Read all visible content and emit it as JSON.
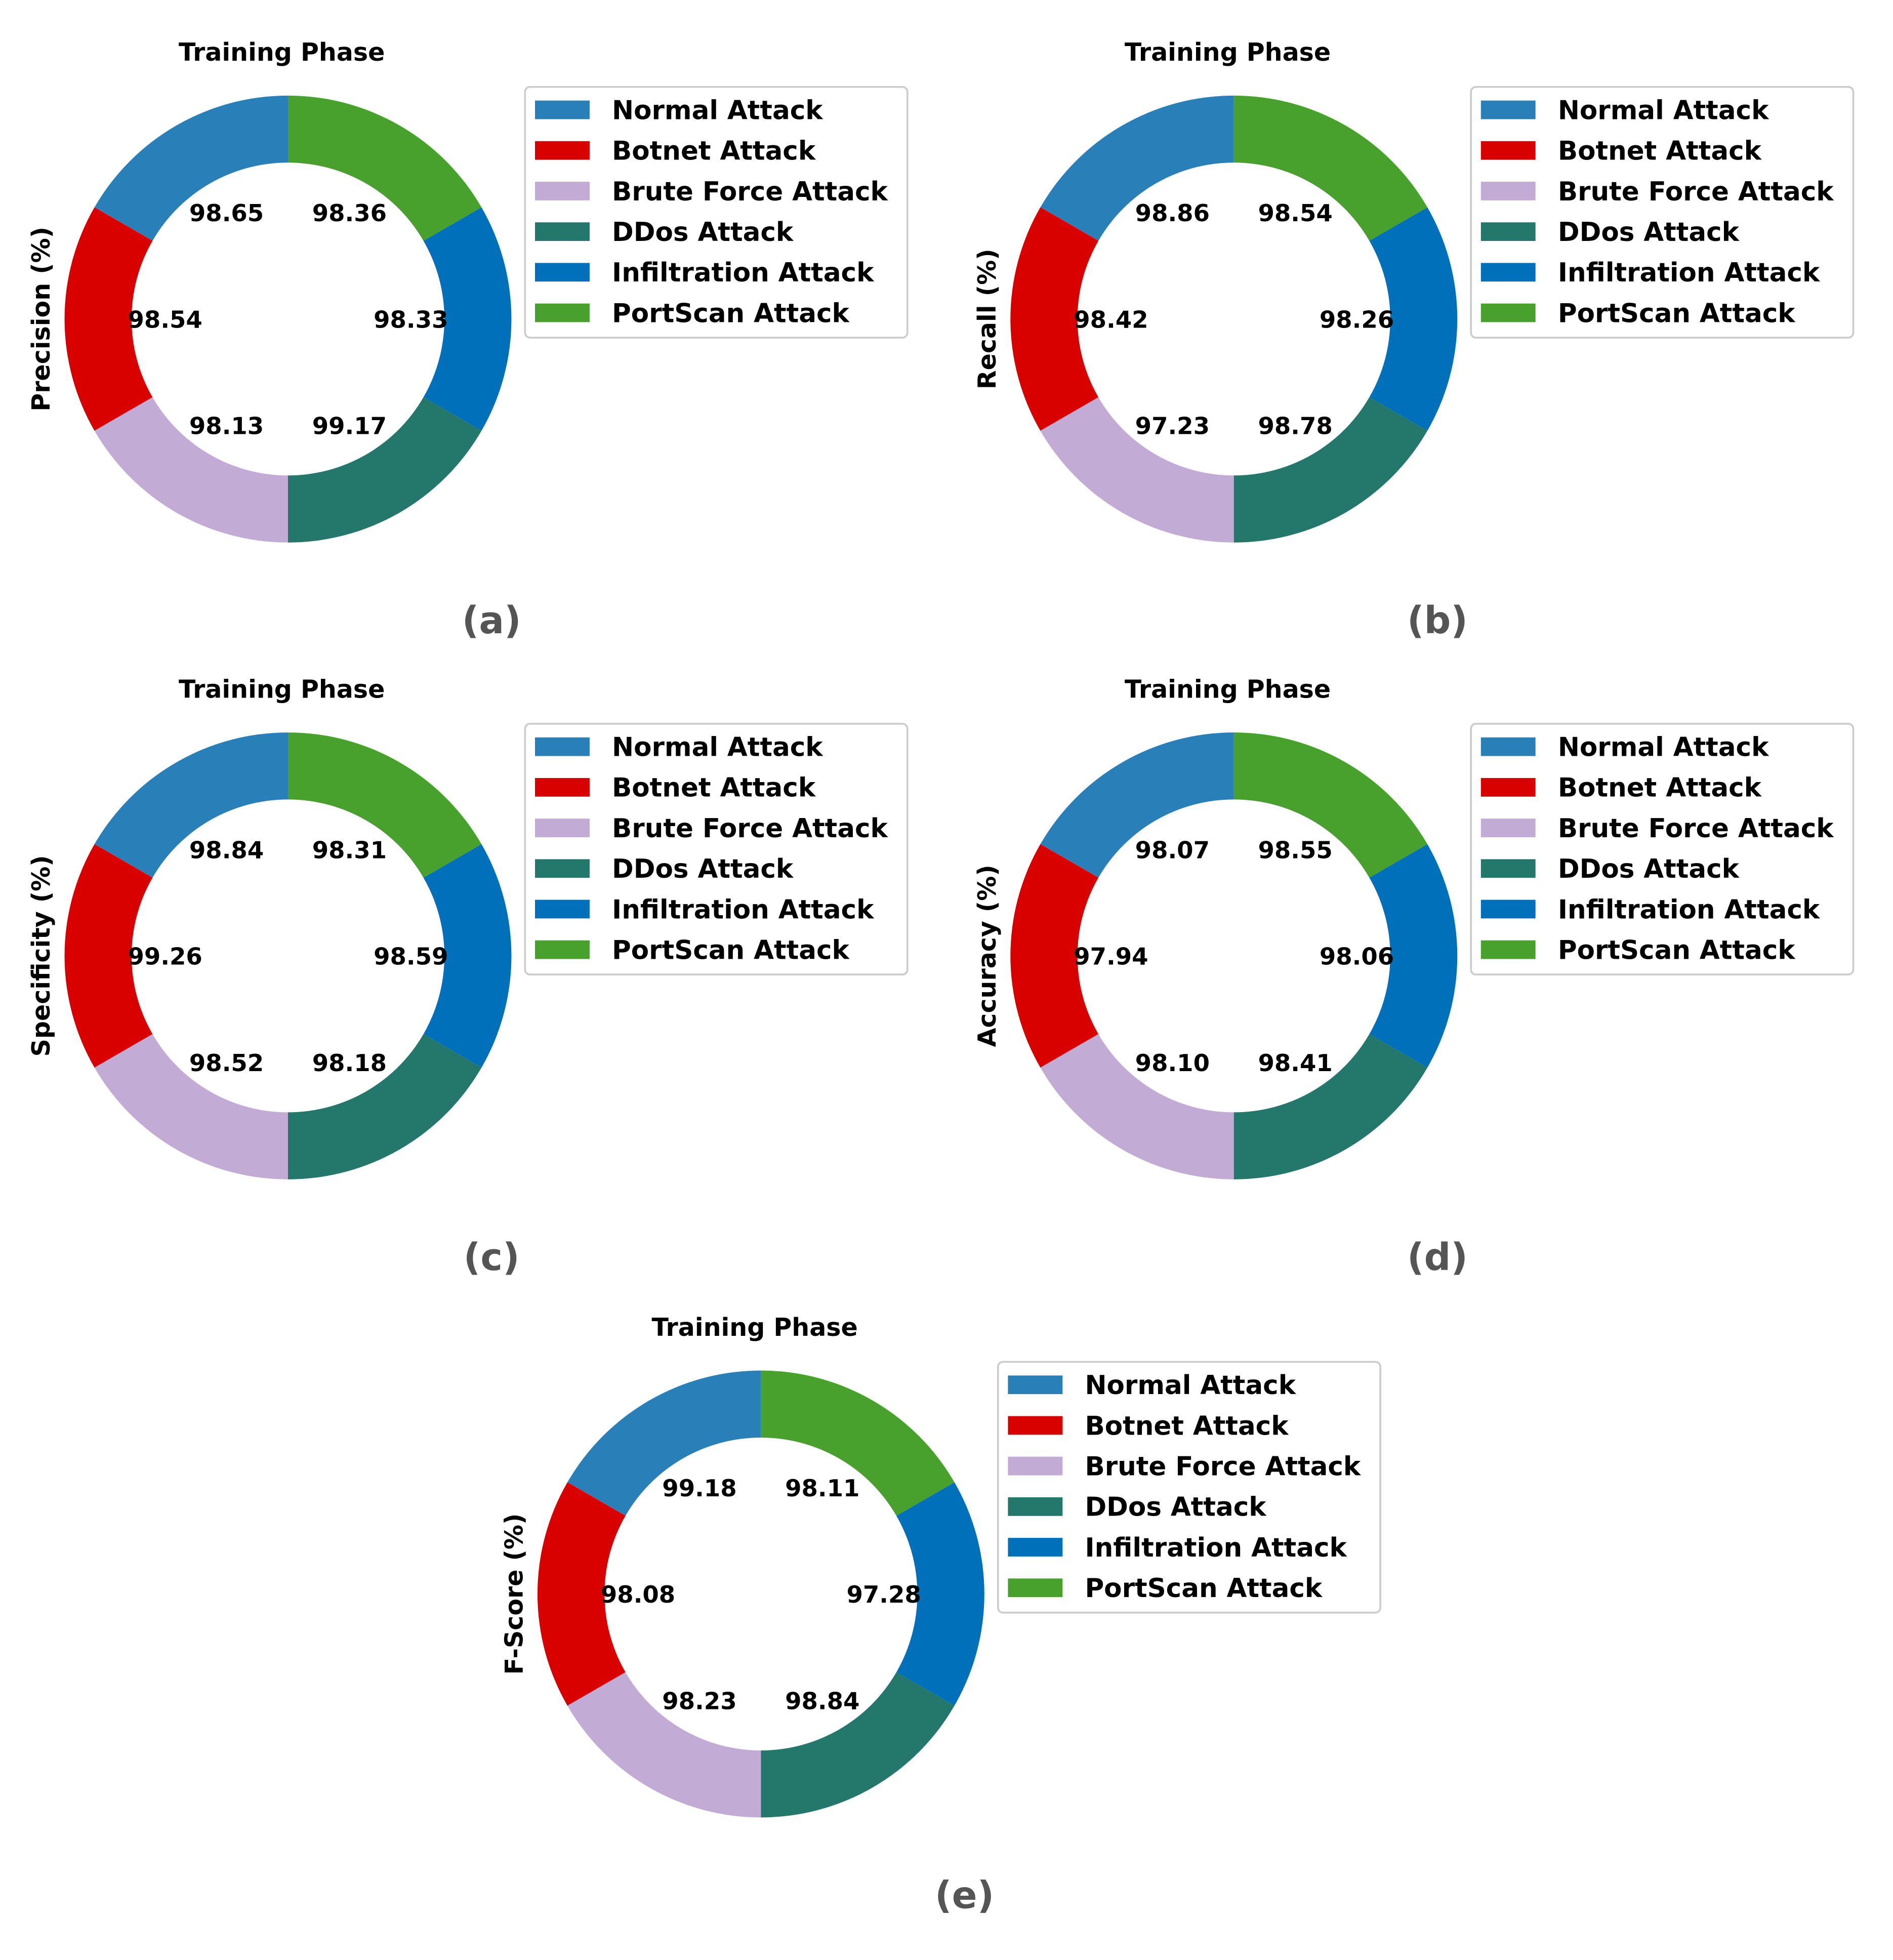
{
  "legend_labels": [
    "Normal Attack",
    "Botnet Attack",
    "Brute Force Attack",
    "DDos Attack",
    "Infiltration Attack",
    "PortScan Attack"
  ],
  "colors": {
    "Normal Attack": "#2980b9",
    "Botnet Attack": "#d90000",
    "Brute Force Attack": "#c2acd5",
    "DDos Attack": "#23776b",
    "Infiltration Attack": "#0070bb",
    "PortScan Attack": "#48a12d",
    "text": "#000000",
    "caption": "#555555",
    "legend_border": "#cccccc"
  },
  "chart_data": [
    {
      "type": "donut",
      "panel": "(a)",
      "title": "Training Phase",
      "ylabel": "Precision (%)",
      "categories": [
        "Normal Attack",
        "Botnet Attack",
        "Brute Force Attack",
        "DDos Attack",
        "Infiltration Attack",
        "PortScan Attack"
      ],
      "values": [
        98.65,
        98.54,
        98.13,
        99.17,
        98.33,
        98.36
      ],
      "value_labels": [
        "98.65",
        "98.54",
        "98.13",
        "99.17",
        "98.33",
        "98.36"
      ]
    },
    {
      "type": "donut",
      "panel": "(b)",
      "title": "Training Phase",
      "ylabel": "Recall (%)",
      "categories": [
        "Normal Attack",
        "Botnet Attack",
        "Brute Force Attack",
        "DDos Attack",
        "Infiltration Attack",
        "PortScan Attack"
      ],
      "values": [
        98.86,
        98.42,
        97.23,
        98.78,
        98.26,
        98.54
      ],
      "value_labels": [
        "98.86",
        "98.42",
        "97.23",
        "98.78",
        "98.26",
        "98.54"
      ]
    },
    {
      "type": "donut",
      "panel": "(c)",
      "title": "Training Phase",
      "ylabel": "Specificity (%)",
      "categories": [
        "Normal Attack",
        "Botnet Attack",
        "Brute Force Attack",
        "DDos Attack",
        "Infiltration Attack",
        "PortScan Attack"
      ],
      "values": [
        98.84,
        99.26,
        98.52,
        98.18,
        98.59,
        98.31
      ],
      "value_labels": [
        "98.84",
        "99.26",
        "98.52",
        "98.18",
        "98.59",
        "98.31"
      ]
    },
    {
      "type": "donut",
      "panel": "(d)",
      "title": "Training Phase",
      "ylabel": "Accuracy (%)",
      "categories": [
        "Normal Attack",
        "Botnet Attack",
        "Brute Force Attack",
        "DDos Attack",
        "Infiltration Attack",
        "PortScan Attack"
      ],
      "values": [
        98.07,
        97.94,
        98.1,
        98.41,
        98.06,
        98.55
      ],
      "value_labels": [
        "98.07",
        "97.94",
        "98.10",
        "98.41",
        "98.06",
        "98.55"
      ]
    },
    {
      "type": "donut",
      "panel": "(e)",
      "title": "Training Phase",
      "ylabel": "F-Score (%)",
      "categories": [
        "Normal Attack",
        "Botnet Attack",
        "Brute Force Attack",
        "DDos Attack",
        "Infiltration Attack",
        "PortScan Attack"
      ],
      "values": [
        99.18,
        98.08,
        98.23,
        98.84,
        97.28,
        98.11
      ],
      "value_labels": [
        "99.18",
        "98.08",
        "98.23",
        "98.84",
        "97.28",
        "98.11"
      ]
    }
  ]
}
